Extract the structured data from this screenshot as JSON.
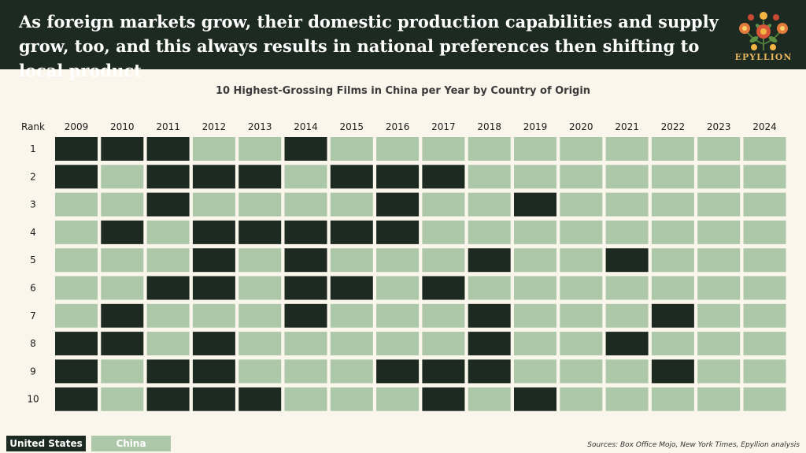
{
  "header": {
    "headline": "As foreign markets grow, their domestic production capabilities and supply grow, too, and this always results in national preferences then shifting to local product",
    "brand": "EPYLLION",
    "logo_icon": "floral-ornament-icon"
  },
  "colors": {
    "united_states": "#1c2a22",
    "china": "#acc8a9",
    "header_bg": "#1c2a22",
    "page_bg": "#fbf6ec"
  },
  "chart_data": {
    "type": "heatmap",
    "title": "10 Highest-Grossing Films in China per Year by Country of Origin",
    "row_header": "Rank",
    "columns": [
      "2009",
      "2010",
      "2011",
      "2012",
      "2013",
      "2014",
      "2015",
      "2016",
      "2017",
      "2018",
      "2019",
      "2020",
      "2021",
      "2022",
      "2023",
      "2024"
    ],
    "rows": [
      "1",
      "2",
      "3",
      "4",
      "5",
      "6",
      "7",
      "8",
      "9",
      "10"
    ],
    "categories": [
      "United States",
      "China"
    ],
    "values": [
      [
        "United States",
        "United States",
        "United States",
        "China",
        "China",
        "United States",
        "China",
        "China",
        "China",
        "China",
        "China",
        "China",
        "China",
        "China",
        "China",
        "China"
      ],
      [
        "United States",
        "China",
        "United States",
        "United States",
        "United States",
        "China",
        "United States",
        "United States",
        "United States",
        "China",
        "China",
        "China",
        "China",
        "China",
        "China",
        "China"
      ],
      [
        "China",
        "China",
        "United States",
        "China",
        "China",
        "China",
        "China",
        "United States",
        "China",
        "China",
        "United States",
        "China",
        "China",
        "China",
        "China",
        "China"
      ],
      [
        "China",
        "United States",
        "China",
        "United States",
        "United States",
        "United States",
        "United States",
        "United States",
        "China",
        "China",
        "China",
        "China",
        "China",
        "China",
        "China",
        "China"
      ],
      [
        "China",
        "China",
        "China",
        "United States",
        "China",
        "United States",
        "China",
        "China",
        "China",
        "United States",
        "China",
        "China",
        "United States",
        "China",
        "China",
        "China"
      ],
      [
        "China",
        "China",
        "United States",
        "United States",
        "China",
        "United States",
        "United States",
        "China",
        "United States",
        "China",
        "China",
        "China",
        "China",
        "China",
        "China",
        "China"
      ],
      [
        "China",
        "United States",
        "China",
        "China",
        "China",
        "United States",
        "China",
        "China",
        "China",
        "United States",
        "China",
        "China",
        "China",
        "United States",
        "China",
        "China"
      ],
      [
        "United States",
        "United States",
        "China",
        "United States",
        "China",
        "China",
        "China",
        "China",
        "China",
        "United States",
        "China",
        "China",
        "United States",
        "China",
        "China",
        "China"
      ],
      [
        "United States",
        "China",
        "United States",
        "United States",
        "China",
        "China",
        "China",
        "United States",
        "United States",
        "United States",
        "China",
        "China",
        "China",
        "United States",
        "China",
        "China"
      ],
      [
        "United States",
        "China",
        "United States",
        "United States",
        "United States",
        "China",
        "China",
        "China",
        "United States",
        "China",
        "United States",
        "China",
        "China",
        "China",
        "China",
        "China"
      ]
    ]
  },
  "legend": {
    "united_states": "United States",
    "china": "China"
  },
  "sources": "Sources: Box Office Mojo, New York Times, Epyllion analysis"
}
